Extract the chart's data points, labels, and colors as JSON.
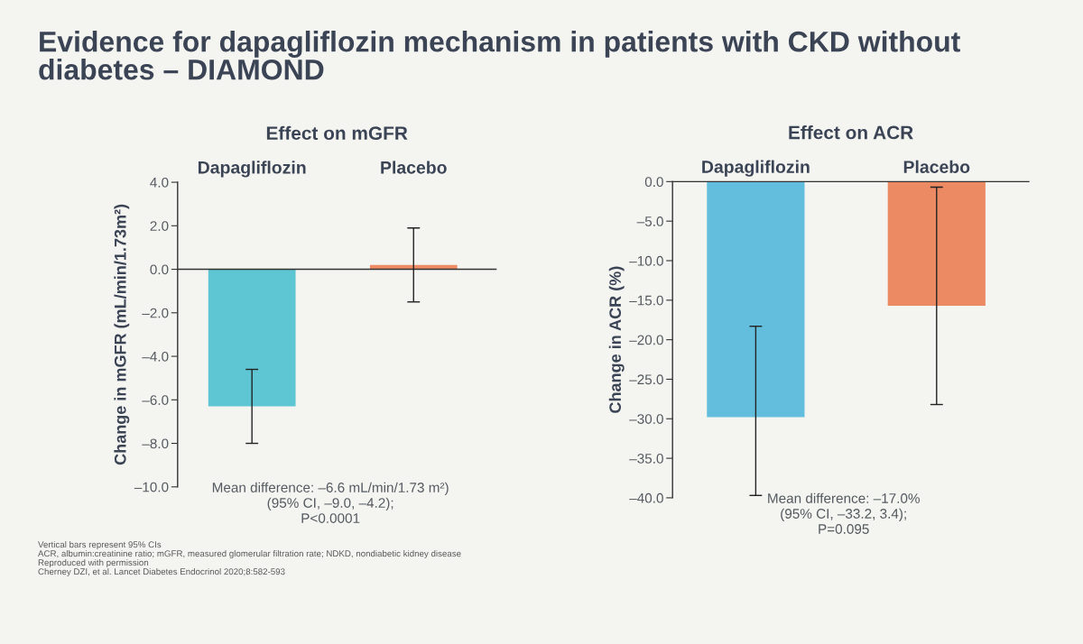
{
  "chart_data": [
    {
      "type": "bar",
      "title": "Evidence for dapagliflozin mechanism in patients with CKD without diabetes – DIAMOND",
      "subtitle": "Effect on mGFR",
      "ylabel": "Change in mGFR (mL/min/1.73m²)",
      "categories": [
        "Dapagliflozin",
        "Placebo"
      ],
      "values": [
        -6.3,
        0.2
      ],
      "colors": [
        "#5ec5d3",
        "#ef8c66"
      ],
      "errors": [
        [
          -8.0,
          -4.6
        ],
        [
          -1.5,
          1.9
        ]
      ],
      "ylim": [
        -10,
        4
      ],
      "yticks": [
        {
          "value": -10,
          "label": "–10.0"
        },
        {
          "value": -8,
          "label": "–8.0"
        },
        {
          "value": -6,
          "label": "–6.0"
        },
        {
          "value": -4,
          "label": "–4.0"
        },
        {
          "value": -2,
          "label": "–2.0"
        },
        {
          "value": 0,
          "label": "0.0"
        },
        {
          "value": 2,
          "label": "2.0"
        },
        {
          "value": 4,
          "label": "4.0"
        }
      ],
      "annotations": [
        "Mean difference: –6.6 mL/min/1.73 m²)\n(95% CI, –9.0, –4.2);\nP<0.0001",
        "Vertical bars represent 95% CIs",
        "ACR, albumin:creatinine ratio; mGFR, measured glomerular filtration rate; NDKD, nondiabetic kidney disease",
        "Reproduced with permission",
        "Cherney DZI, et al. Lancet Diabetes Endocrinol 2020;8:582-593"
      ]
    },
    {
      "type": "bar",
      "title": "Effect on ACR",
      "ylabel": "Change in ACR (%)",
      "categories": [
        "Dapagliflozin",
        "Placebo"
      ],
      "values": [
        -29.8,
        -15.7
      ],
      "colors": [
        "#62bedc",
        "#ec8a63"
      ],
      "errors": [
        [
          -39.7,
          -18.3
        ],
        [
          -28.2,
          -0.7
        ]
      ],
      "ylim": [
        -40,
        0
      ],
      "yticks": [
        {
          "value": -40,
          "label": "–40.0"
        },
        {
          "value": -35,
          "label": "–35.0"
        },
        {
          "value": -30,
          "label": "–30.0"
        },
        {
          "value": -25,
          "label": "–25.0"
        },
        {
          "value": -20,
          "label": "–20.0"
        },
        {
          "value": -15,
          "label": "–15.0"
        },
        {
          "value": -10,
          "label": "–10.0"
        },
        {
          "value": -5,
          "label": "–5.0"
        },
        {
          "value": 0,
          "label": "0.0"
        }
      ],
      "annotations": [
        "Mean difference: –17.0%\n(95% CI, –33.2, 3.4);\nP=0.095"
      ]
    }
  ]
}
